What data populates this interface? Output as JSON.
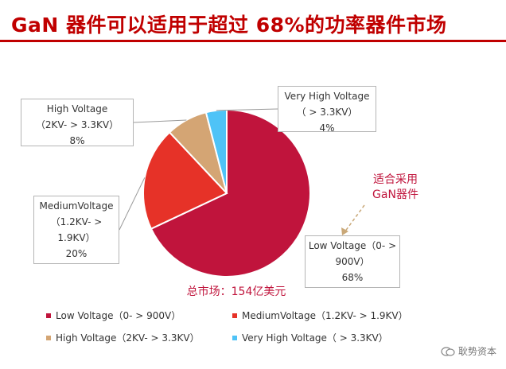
{
  "title": "GaN 器件可以适用于超过 68%的功率器件市场",
  "note": {
    "line1": "适合采用",
    "line2": "GaN器件"
  },
  "total_label": "总市场：154亿美元",
  "watermark": "耿势资本",
  "chart_data": {
    "type": "pie",
    "title": "",
    "slices": [
      {
        "key": "low",
        "label": "Low Voltage（0- > 900V）",
        "value": 68,
        "color": "#c0143c",
        "callout_lines": [
          "Low Voltage（0- >",
          "900V）",
          "68%"
        ]
      },
      {
        "key": "medium",
        "label": "MediumVoltage（1.2KV- > 1.9KV）",
        "value": 20,
        "color": "#e63228",
        "callout_lines": [
          "MediumVoltage",
          "（1.2KV- >",
          "1.9KV）",
          "20%"
        ]
      },
      {
        "key": "high",
        "label": "High Voltage（2KV- > 3.3KV）",
        "value": 8,
        "color": "#d4a574",
        "callout_lines": [
          "High Voltage",
          "（2KV- > 3.3KV）",
          "8%"
        ]
      },
      {
        "key": "veryhigh",
        "label": "Very High Voltage（ > 3.3KV）",
        "value": 4,
        "color": "#4fc3f7",
        "callout_lines": [
          "Very High Voltage",
          "（ > 3.3KV）",
          "4%"
        ]
      }
    ],
    "legend_placement": "bottom"
  }
}
